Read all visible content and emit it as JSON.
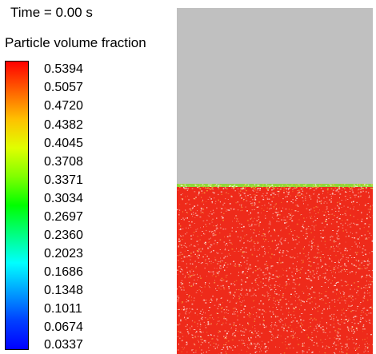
{
  "time_label": "Time = 0.00 s",
  "legend": {
    "title": "Particle volume fraction",
    "ticks": [
      "0.5394",
      "0.5057",
      "0.4720",
      "0.4382",
      "0.4045",
      "0.3708",
      "0.3371",
      "0.3034",
      "0.2697",
      "0.2360",
      "0.2023",
      "0.1686",
      "0.1348",
      "0.1011",
      "0.0674",
      "0.0337"
    ],
    "colormap": [
      "#ff0000",
      "#ff6000",
      "#ffc000",
      "#e0ff00",
      "#80ff00",
      "#00ff00",
      "#00ff80",
      "#00ffff",
      "#00a0ff",
      "#0040ff",
      "#0000ff"
    ]
  },
  "domain": {
    "background_color": "#c0c0c0",
    "bed_fill_fraction": 0.49,
    "bed_color": "#ee2a1a",
    "surface_color": "#8fd63a"
  }
}
